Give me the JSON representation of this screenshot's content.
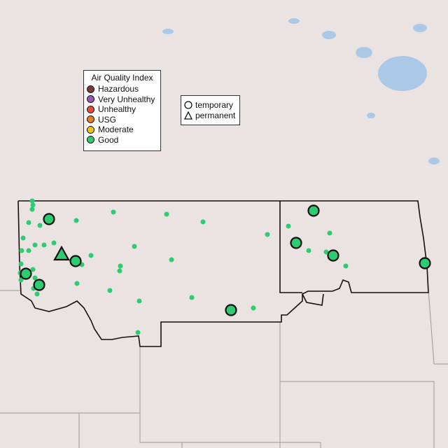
{
  "aqi_legend": {
    "title": "Air Quality Index",
    "items": [
      {
        "label": "Hazardous",
        "color": "#7e3b36"
      },
      {
        "label": "Very Unhealthy",
        "color": "#9b59b6"
      },
      {
        "label": "Unhealthy",
        "color": "#e74c3c"
      },
      {
        "label": "USG",
        "color": "#e67e22"
      },
      {
        "label": "Moderate",
        "color": "#f1c40f"
      },
      {
        "label": "Good",
        "color": "#2ecc71"
      }
    ]
  },
  "type_legend": {
    "items": [
      {
        "label": "temporary",
        "shape": "circle"
      },
      {
        "label": "permanent",
        "shape": "triangle"
      }
    ]
  },
  "colors": {
    "land": "#ece4e2",
    "water": "#a9c8e6",
    "border": "#111111",
    "good": "#2ecc71"
  },
  "markers": {
    "category": "Good"
  }
}
